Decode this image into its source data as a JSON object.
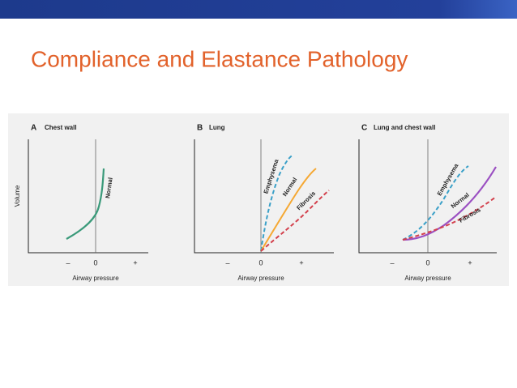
{
  "header": {
    "title": "Compliance and Elastance Pathology"
  },
  "panels": [
    {
      "letter": "A",
      "title": "Chest wall",
      "y_label": "Volume",
      "x_label": "Airway pressure",
      "ticks": [
        "–",
        "0",
        "+"
      ],
      "curves": [
        {
          "label": "Normal"
        }
      ]
    },
    {
      "letter": "B",
      "title": "Lung",
      "x_label": "Airway pressure",
      "ticks": [
        "–",
        "0",
        "+"
      ],
      "curves": [
        {
          "label": "Emphysema"
        },
        {
          "label": "Normal"
        },
        {
          "label": "Fibrosis"
        }
      ]
    },
    {
      "letter": "C",
      "title": "Lung and chest wall",
      "x_label": "Airway pressure",
      "ticks": [
        "–",
        "0",
        "+"
      ],
      "curves": [
        {
          "label": "Emphysema"
        },
        {
          "label": "Normal"
        },
        {
          "label": "Fibrosis"
        }
      ]
    }
  ]
}
